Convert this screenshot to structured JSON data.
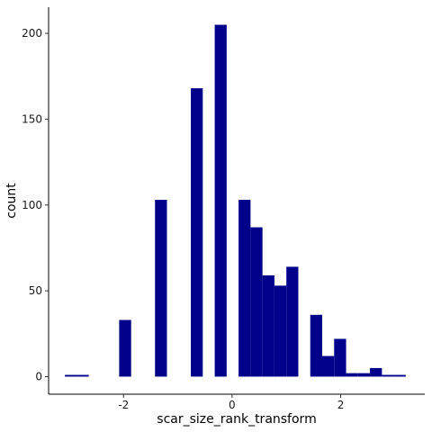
{
  "chart_data": {
    "type": "bar",
    "subtype": "histogram",
    "xlabel": "scar_size_rank_transform",
    "ylabel": "count",
    "xlim": [
      -3.38,
      3.55
    ],
    "ylim": [
      -10.25,
      215.25
    ],
    "x_ticks": [
      -2,
      0,
      2
    ],
    "y_ticks": [
      0,
      50,
      100,
      150,
      200
    ],
    "x_tick_labels": [
      "-2",
      "0",
      "2"
    ],
    "y_tick_labels": [
      "0",
      "50",
      "100",
      "150",
      "200"
    ],
    "grid": false,
    "bar_color": "#00008B",
    "bins": [
      {
        "x0": -3.08,
        "x1": -2.86,
        "count": 1
      },
      {
        "x0": -2.86,
        "x1": -2.64,
        "count": 1
      },
      {
        "x0": -2.08,
        "x1": -1.86,
        "count": 33
      },
      {
        "x0": -1.42,
        "x1": -1.2,
        "count": 103
      },
      {
        "x0": -0.76,
        "x1": -0.54,
        "count": 168
      },
      {
        "x0": -0.32,
        "x1": -0.1,
        "count": 205
      },
      {
        "x0": 0.12,
        "x1": 0.34,
        "count": 103
      },
      {
        "x0": 0.34,
        "x1": 0.56,
        "count": 87
      },
      {
        "x0": 0.56,
        "x1": 0.78,
        "count": 59
      },
      {
        "x0": 0.78,
        "x1": 1.0,
        "count": 53
      },
      {
        "x0": 1.0,
        "x1": 1.22,
        "count": 64
      },
      {
        "x0": 1.44,
        "x1": 1.66,
        "count": 36
      },
      {
        "x0": 1.66,
        "x1": 1.88,
        "count": 12
      },
      {
        "x0": 1.88,
        "x1": 2.1,
        "count": 22
      },
      {
        "x0": 2.1,
        "x1": 2.32,
        "count": 2
      },
      {
        "x0": 2.32,
        "x1": 2.54,
        "count": 2
      },
      {
        "x0": 2.54,
        "x1": 2.76,
        "count": 5
      },
      {
        "x0": 2.76,
        "x1": 2.98,
        "count": 1
      },
      {
        "x0": 2.98,
        "x1": 3.2,
        "count": 1
      }
    ]
  }
}
